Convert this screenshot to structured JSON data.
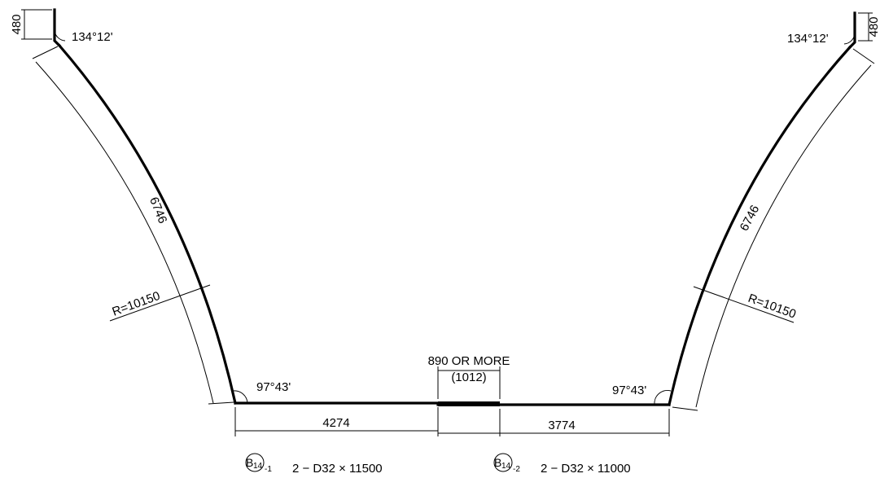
{
  "dimensions": {
    "hook_left": "480",
    "hook_right": "480",
    "angle_top_left": "134°12'",
    "angle_top_right": "134°12'",
    "arc_left": "6746",
    "arc_right": "6746",
    "radius_left": "R=10150",
    "radius_right": "R=10150",
    "angle_bottom_left": "97°43'",
    "angle_bottom_right": "97°43'",
    "lap_label": "890 OR MORE",
    "lap_value": "(1012)",
    "bottom_left": "4274",
    "bottom_right": "3774"
  },
  "bar_marks": [
    {
      "mark": "B",
      "subscript": "14",
      "suffix": "-1",
      "spec": "2 − D32 × 11500"
    },
    {
      "mark": "B",
      "subscript": "14",
      "suffix": "-2",
      "spec": "2 − D32 × 11000"
    }
  ]
}
